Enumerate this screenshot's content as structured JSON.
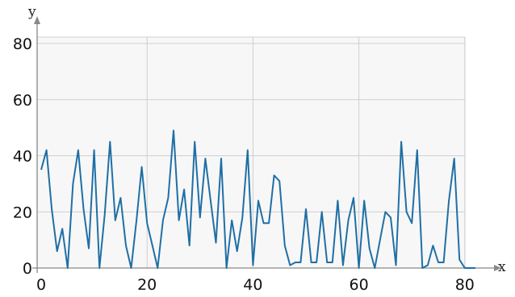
{
  "chart_data": {
    "type": "line",
    "xlabel": "x",
    "ylabel": "y",
    "xlim": [
      0,
      82
    ],
    "ylim": [
      0,
      80
    ],
    "xticks": [
      0,
      20,
      40,
      60,
      80
    ],
    "yticks": [
      0,
      20,
      40,
      60,
      80
    ],
    "grid": true,
    "series": [
      {
        "color": "#1f6fa5",
        "x": [
          0,
          1,
          2,
          3,
          4,
          5,
          6,
          7,
          8,
          9,
          10,
          11,
          12,
          13,
          14,
          15,
          16,
          17,
          18,
          19,
          20,
          21,
          22,
          23,
          24,
          25,
          26,
          27,
          28,
          29,
          30,
          31,
          32,
          33,
          34,
          35,
          36,
          37,
          38,
          39,
          40,
          41,
          42,
          43,
          44,
          45,
          46,
          47,
          48,
          49,
          50,
          51,
          52,
          53,
          54,
          55,
          56,
          57,
          58,
          59,
          60,
          61,
          62,
          63,
          64,
          65,
          66,
          67,
          68,
          69,
          70,
          71,
          72,
          73,
          74,
          75,
          76,
          77,
          78,
          79,
          80,
          81,
          82
        ],
        "y": [
          35,
          42,
          21,
          6,
          14,
          0,
          30,
          42,
          21,
          7,
          42,
          0,
          19,
          45,
          17,
          25,
          8,
          0,
          17,
          36,
          16,
          8,
          0,
          17,
          25,
          49,
          17,
          28,
          8,
          45,
          18,
          39,
          24,
          9,
          39,
          0,
          17,
          6,
          18,
          42,
          1,
          24,
          16,
          16,
          33,
          31,
          8,
          1,
          2,
          2,
          21,
          2,
          2,
          20,
          2,
          2,
          24,
          1,
          17,
          25,
          0,
          24,
          7,
          0,
          10,
          20,
          18,
          1,
          45,
          20,
          16,
          42,
          0,
          1,
          8,
          2,
          2,
          24,
          39,
          3,
          0,
          0,
          0
        ]
      }
    ]
  },
  "axes": {
    "x_name": "x",
    "y_name": "y",
    "x_tick_labels": [
      "0",
      "20",
      "40",
      "60",
      "80"
    ],
    "y_tick_labels": [
      "0",
      "20",
      "40",
      "60",
      "80"
    ]
  }
}
